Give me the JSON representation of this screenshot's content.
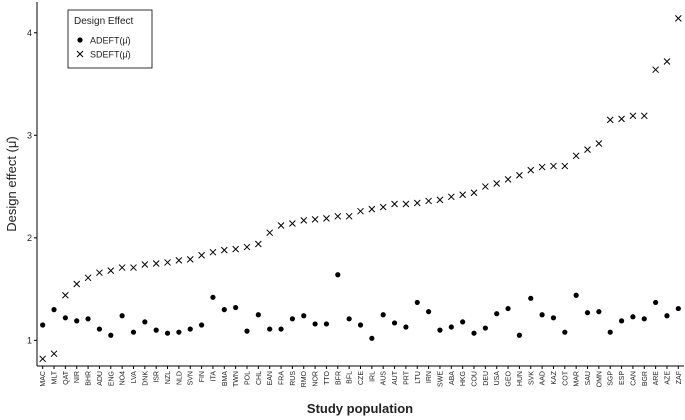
{
  "chart_data": {
    "type": "scatter",
    "x_label": "Study population",
    "y_label": "Design effect (μ̂)",
    "legend_title": "Design Effect",
    "legend_position": "upper left",
    "categories": [
      "MAC",
      "MLT",
      "QAT",
      "NIR",
      "BHR",
      "ADU",
      "ENG",
      "NO4",
      "LVA",
      "DNK",
      "ISR",
      "NZL",
      "NLD",
      "SVN",
      "FIN",
      "ITA",
      "BMA",
      "TWN",
      "POL",
      "CHL",
      "EAN",
      "FRA",
      "RUS",
      "RMO",
      "NOR",
      "TTO",
      "BFR",
      "BFL",
      "CZE",
      "IRL",
      "AUS",
      "AUT",
      "PRT",
      "LTU",
      "IRN",
      "SWE",
      "ABA",
      "HKG",
      "COU",
      "DEU",
      "USA",
      "GEO",
      "HUN",
      "SVK",
      "AAD",
      "KAZ",
      "COT",
      "MAR",
      "SAU",
      "OMN",
      "SGP",
      "ESP",
      "CAN",
      "BGR",
      "ARE",
      "AZE",
      "ZAF"
    ],
    "series": [
      {
        "name": "ADEFT(μ̂)",
        "marker": "dot",
        "color": "#000000",
        "values": [
          1.15,
          1.3,
          1.22,
          1.19,
          1.21,
          1.11,
          1.05,
          1.24,
          1.08,
          1.18,
          1.1,
          1.07,
          1.08,
          1.11,
          1.15,
          1.42,
          1.3,
          1.32,
          1.09,
          1.25,
          1.11,
          1.11,
          1.21,
          1.24,
          1.16,
          1.16,
          1.64,
          1.21,
          1.15,
          1.02,
          1.25,
          1.17,
          1.13,
          1.37,
          1.28,
          1.1,
          1.13,
          1.18,
          1.07,
          1.12,
          1.26,
          1.31,
          1.05,
          1.41,
          1.25,
          1.22,
          1.08,
          1.44,
          1.27,
          1.28,
          1.08,
          1.19,
          1.23,
          1.21,
          1.37,
          1.24,
          1.31
        ]
      },
      {
        "name": "SDEFT(μ̂)",
        "marker": "cross",
        "color": "#000000",
        "values": [
          0.82,
          0.87,
          1.44,
          1.55,
          1.61,
          1.66,
          1.68,
          1.71,
          1.71,
          1.74,
          1.75,
          1.76,
          1.78,
          1.79,
          1.83,
          1.86,
          1.88,
          1.89,
          1.91,
          1.94,
          2.05,
          2.12,
          2.14,
          2.17,
          2.18,
          2.19,
          2.21,
          2.21,
          2.26,
          2.28,
          2.3,
          2.33,
          2.33,
          2.34,
          2.36,
          2.37,
          2.4,
          2.42,
          2.44,
          2.5,
          2.53,
          2.57,
          2.61,
          2.66,
          2.69,
          2.7,
          2.7,
          2.8,
          2.86,
          2.92,
          3.15,
          3.16,
          3.19,
          3.19,
          3.64,
          3.72,
          4.14
        ]
      }
    ],
    "ylim": [
      0.75,
      4.3
    ],
    "yticks": [
      1,
      2,
      3,
      4
    ],
    "grid": false
  }
}
